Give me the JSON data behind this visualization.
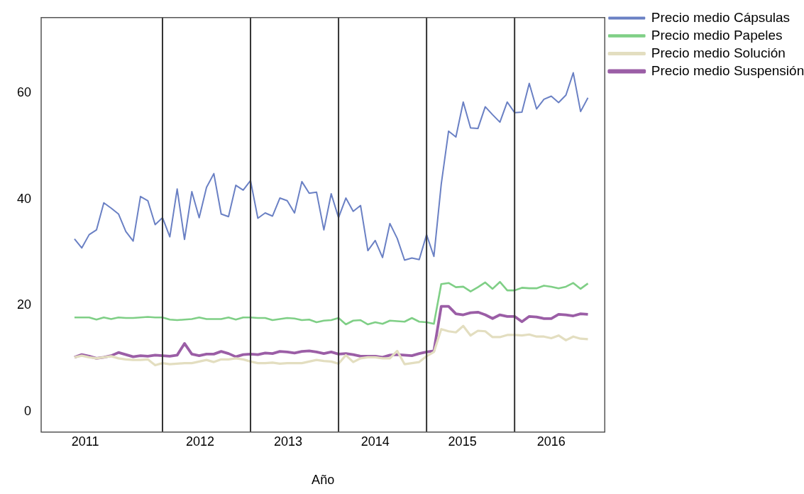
{
  "chart_data": {
    "type": "line",
    "xlabel": "Año",
    "x": [
      "2011-01",
      "2011-02",
      "2011-03",
      "2011-04",
      "2011-05",
      "2011-06",
      "2011-07",
      "2011-08",
      "2011-09",
      "2011-10",
      "2011-11",
      "2011-12",
      "2012-01",
      "2012-02",
      "2012-03",
      "2012-04",
      "2012-05",
      "2012-06",
      "2012-07",
      "2012-08",
      "2012-09",
      "2012-10",
      "2012-11",
      "2012-12",
      "2013-01",
      "2013-02",
      "2013-03",
      "2013-04",
      "2013-05",
      "2013-06",
      "2013-07",
      "2013-08",
      "2013-09",
      "2013-10",
      "2013-11",
      "2013-12",
      "2014-01",
      "2014-02",
      "2014-03",
      "2014-04",
      "2014-05",
      "2014-06",
      "2014-07",
      "2014-08",
      "2014-09",
      "2014-10",
      "2014-11",
      "2014-12",
      "2015-01",
      "2015-02",
      "2015-03",
      "2015-04",
      "2015-05",
      "2015-06",
      "2015-07",
      "2015-08",
      "2015-09",
      "2015-10",
      "2015-11",
      "2015-12",
      "2016-01",
      "2016-02",
      "2016-03",
      "2016-04",
      "2016-05",
      "2016-06",
      "2016-07",
      "2016-08",
      "2016-09",
      "2016-10",
      "2016-11"
    ],
    "series": [
      {
        "name": "Precio medio Cápsulas",
        "color": "#6a80c4",
        "values": [
          32.5,
          30.8,
          33.3,
          34.2,
          39.3,
          38.3,
          37.2,
          33.9,
          32.1,
          40.5,
          39.7,
          35.2,
          36.5,
          32.9,
          41.9,
          32.4,
          41.4,
          36.5,
          42.2,
          44.8,
          37.2,
          36.7,
          42.6,
          41.7,
          43.5,
          36.4,
          37.4,
          36.8,
          40.2,
          39.7,
          37.4,
          43.3,
          41.1,
          41.3,
          34.2,
          41.0,
          36.5,
          40.2,
          37.7,
          38.8,
          30.3,
          32.2,
          29.0,
          35.4,
          32.6,
          28.5,
          28.9,
          28.6,
          33.3,
          29.2,
          42.8,
          52.8,
          51.7,
          58.3,
          53.4,
          53.3,
          57.4,
          55.9,
          54.5,
          58.3,
          56.3,
          56.4,
          61.8,
          57.0,
          58.8,
          59.4,
          58.2,
          59.6,
          63.8,
          56.5,
          59.1
        ]
      },
      {
        "name": "Precio medio Papeles",
        "color": "#7fcf86",
        "values": [
          17.7,
          17.7,
          17.7,
          17.3,
          17.7,
          17.4,
          17.7,
          17.6,
          17.6,
          17.7,
          17.8,
          17.7,
          17.7,
          17.3,
          17.2,
          17.3,
          17.4,
          17.7,
          17.4,
          17.4,
          17.4,
          17.7,
          17.3,
          17.7,
          17.7,
          17.6,
          17.6,
          17.2,
          17.4,
          17.6,
          17.5,
          17.2,
          17.3,
          16.8,
          17.1,
          17.2,
          17.6,
          16.4,
          17.1,
          17.2,
          16.4,
          16.8,
          16.5,
          17.1,
          17.0,
          16.9,
          17.6,
          16.9,
          16.8,
          16.5,
          24.0,
          24.2,
          23.4,
          23.5,
          22.6,
          23.4,
          24.3,
          23.1,
          24.4,
          22.8,
          22.8,
          23.3,
          23.2,
          23.2,
          23.7,
          23.5,
          23.2,
          23.5,
          24.2,
          23.1,
          24.1
        ]
      },
      {
        "name": "Precio medio Solución",
        "color": "#e3dec0",
        "values": [
          10.2,
          10.5,
          10.2,
          10.0,
          10.2,
          10.4,
          10.0,
          9.8,
          9.7,
          9.7,
          9.8,
          8.7,
          9.1,
          8.9,
          9.0,
          9.1,
          9.1,
          9.4,
          9.7,
          9.3,
          9.8,
          9.8,
          10.0,
          9.8,
          9.4,
          9.1,
          9.1,
          9.2,
          9.0,
          9.1,
          9.1,
          9.1,
          9.4,
          9.7,
          9.5,
          9.4,
          9.0,
          10.6,
          9.3,
          10.0,
          10.2,
          10.2,
          10.0,
          10.0,
          11.4,
          8.9,
          9.1,
          9.3,
          10.4,
          11.2,
          15.5,
          15.1,
          14.9,
          16.1,
          14.3,
          15.2,
          15.1,
          14.0,
          14.0,
          14.4,
          14.4,
          14.3,
          14.5,
          14.1,
          14.1,
          13.8,
          14.3,
          13.4,
          14.1,
          13.7,
          13.6
        ]
      },
      {
        "name": "Precio medio Suspensión",
        "color": "#9b5ea6",
        "values": [
          10.2,
          10.7,
          10.4,
          10.0,
          10.2,
          10.5,
          11.1,
          10.7,
          10.3,
          10.5,
          10.4,
          10.6,
          10.5,
          10.4,
          10.6,
          12.8,
          10.8,
          10.5,
          10.8,
          10.8,
          11.3,
          10.9,
          10.3,
          10.7,
          10.8,
          10.7,
          11.0,
          10.9,
          11.3,
          11.2,
          11.0,
          11.3,
          11.4,
          11.2,
          10.9,
          11.2,
          10.8,
          10.9,
          10.7,
          10.4,
          10.4,
          10.4,
          10.2,
          10.6,
          10.7,
          10.6,
          10.5,
          10.9,
          11.2,
          11.4,
          19.8,
          19.8,
          18.4,
          18.2,
          18.6,
          18.7,
          18.2,
          17.5,
          18.2,
          17.9,
          17.9,
          16.9,
          17.9,
          17.8,
          17.5,
          17.5,
          18.3,
          18.2,
          18.0,
          18.4,
          18.3
        ]
      }
    ],
    "xlim": [
      "2010-08-15",
      "2017-01-10"
    ],
    "xticks": [
      {
        "value": "2011-02-15",
        "label": "2011"
      },
      {
        "value": "2012-06-05",
        "label": "2012"
      },
      {
        "value": "2013-06-05",
        "label": "2013"
      },
      {
        "value": "2014-06-01",
        "label": "2014"
      },
      {
        "value": "2015-05-28",
        "label": "2015"
      },
      {
        "value": "2016-06-01",
        "label": "2016"
      }
    ],
    "ylim": [
      -3.9,
      74.2
    ],
    "yticks": [
      0,
      20,
      40,
      60
    ],
    "ref_lines": [
      {
        "axis": "x",
        "value": "2012-01-01",
        "color": "#333333"
      },
      {
        "axis": "x",
        "value": "2013-01-01",
        "color": "#333333"
      },
      {
        "axis": "x",
        "value": "2014-01-01",
        "color": "#333333"
      },
      {
        "axis": "x",
        "value": "2015-01-01",
        "color": "#333333"
      },
      {
        "axis": "x",
        "value": "2016-01-01",
        "color": "#333333"
      }
    ],
    "legend": "top right",
    "grid": false,
    "marker": "none",
    "line_style": "solid"
  }
}
